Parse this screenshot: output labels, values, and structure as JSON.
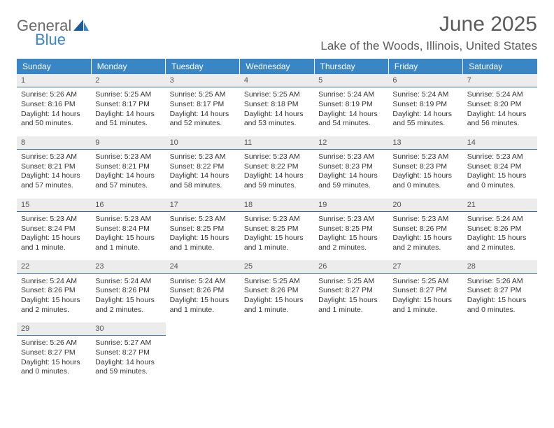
{
  "logo": {
    "text_general": "General",
    "text_blue": "Blue",
    "sail_color": "#1b5a94"
  },
  "header": {
    "title": "June 2025",
    "location": "Lake of the Woods, Illinois, United States",
    "title_color": "#5a5a5a",
    "title_fontsize": 30,
    "location_fontsize": 17
  },
  "calendar": {
    "header_bg": "#3a85c4",
    "header_text_color": "#ffffff",
    "daynum_bg": "#ececec",
    "daynum_border": "#3a6fa0",
    "body_bg": "#ffffff",
    "cell_font_size": 10.5,
    "columns": [
      "Sunday",
      "Monday",
      "Tuesday",
      "Wednesday",
      "Thursday",
      "Friday",
      "Saturday"
    ],
    "weeks": [
      [
        {
          "n": "1",
          "sr": "Sunrise: 5:26 AM",
          "ss": "Sunset: 8:16 PM",
          "dl": "Daylight: 14 hours and 50 minutes."
        },
        {
          "n": "2",
          "sr": "Sunrise: 5:25 AM",
          "ss": "Sunset: 8:17 PM",
          "dl": "Daylight: 14 hours and 51 minutes."
        },
        {
          "n": "3",
          "sr": "Sunrise: 5:25 AM",
          "ss": "Sunset: 8:17 PM",
          "dl": "Daylight: 14 hours and 52 minutes."
        },
        {
          "n": "4",
          "sr": "Sunrise: 5:25 AM",
          "ss": "Sunset: 8:18 PM",
          "dl": "Daylight: 14 hours and 53 minutes."
        },
        {
          "n": "5",
          "sr": "Sunrise: 5:24 AM",
          "ss": "Sunset: 8:19 PM",
          "dl": "Daylight: 14 hours and 54 minutes."
        },
        {
          "n": "6",
          "sr": "Sunrise: 5:24 AM",
          "ss": "Sunset: 8:19 PM",
          "dl": "Daylight: 14 hours and 55 minutes."
        },
        {
          "n": "7",
          "sr": "Sunrise: 5:24 AM",
          "ss": "Sunset: 8:20 PM",
          "dl": "Daylight: 14 hours and 56 minutes."
        }
      ],
      [
        {
          "n": "8",
          "sr": "Sunrise: 5:23 AM",
          "ss": "Sunset: 8:21 PM",
          "dl": "Daylight: 14 hours and 57 minutes."
        },
        {
          "n": "9",
          "sr": "Sunrise: 5:23 AM",
          "ss": "Sunset: 8:21 PM",
          "dl": "Daylight: 14 hours and 57 minutes."
        },
        {
          "n": "10",
          "sr": "Sunrise: 5:23 AM",
          "ss": "Sunset: 8:22 PM",
          "dl": "Daylight: 14 hours and 58 minutes."
        },
        {
          "n": "11",
          "sr": "Sunrise: 5:23 AM",
          "ss": "Sunset: 8:22 PM",
          "dl": "Daylight: 14 hours and 59 minutes."
        },
        {
          "n": "12",
          "sr": "Sunrise: 5:23 AM",
          "ss": "Sunset: 8:23 PM",
          "dl": "Daylight: 14 hours and 59 minutes."
        },
        {
          "n": "13",
          "sr": "Sunrise: 5:23 AM",
          "ss": "Sunset: 8:23 PM",
          "dl": "Daylight: 15 hours and 0 minutes."
        },
        {
          "n": "14",
          "sr": "Sunrise: 5:23 AM",
          "ss": "Sunset: 8:24 PM",
          "dl": "Daylight: 15 hours and 0 minutes."
        }
      ],
      [
        {
          "n": "15",
          "sr": "Sunrise: 5:23 AM",
          "ss": "Sunset: 8:24 PM",
          "dl": "Daylight: 15 hours and 1 minute."
        },
        {
          "n": "16",
          "sr": "Sunrise: 5:23 AM",
          "ss": "Sunset: 8:24 PM",
          "dl": "Daylight: 15 hours and 1 minute."
        },
        {
          "n": "17",
          "sr": "Sunrise: 5:23 AM",
          "ss": "Sunset: 8:25 PM",
          "dl": "Daylight: 15 hours and 1 minute."
        },
        {
          "n": "18",
          "sr": "Sunrise: 5:23 AM",
          "ss": "Sunset: 8:25 PM",
          "dl": "Daylight: 15 hours and 1 minute."
        },
        {
          "n": "19",
          "sr": "Sunrise: 5:23 AM",
          "ss": "Sunset: 8:25 PM",
          "dl": "Daylight: 15 hours and 2 minutes."
        },
        {
          "n": "20",
          "sr": "Sunrise: 5:23 AM",
          "ss": "Sunset: 8:26 PM",
          "dl": "Daylight: 15 hours and 2 minutes."
        },
        {
          "n": "21",
          "sr": "Sunrise: 5:24 AM",
          "ss": "Sunset: 8:26 PM",
          "dl": "Daylight: 15 hours and 2 minutes."
        }
      ],
      [
        {
          "n": "22",
          "sr": "Sunrise: 5:24 AM",
          "ss": "Sunset: 8:26 PM",
          "dl": "Daylight: 15 hours and 2 minutes."
        },
        {
          "n": "23",
          "sr": "Sunrise: 5:24 AM",
          "ss": "Sunset: 8:26 PM",
          "dl": "Daylight: 15 hours and 2 minutes."
        },
        {
          "n": "24",
          "sr": "Sunrise: 5:24 AM",
          "ss": "Sunset: 8:26 PM",
          "dl": "Daylight: 15 hours and 1 minute."
        },
        {
          "n": "25",
          "sr": "Sunrise: 5:25 AM",
          "ss": "Sunset: 8:26 PM",
          "dl": "Daylight: 15 hours and 1 minute."
        },
        {
          "n": "26",
          "sr": "Sunrise: 5:25 AM",
          "ss": "Sunset: 8:27 PM",
          "dl": "Daylight: 15 hours and 1 minute."
        },
        {
          "n": "27",
          "sr": "Sunrise: 5:25 AM",
          "ss": "Sunset: 8:27 PM",
          "dl": "Daylight: 15 hours and 1 minute."
        },
        {
          "n": "28",
          "sr": "Sunrise: 5:26 AM",
          "ss": "Sunset: 8:27 PM",
          "dl": "Daylight: 15 hours and 0 minutes."
        }
      ],
      [
        {
          "n": "29",
          "sr": "Sunrise: 5:26 AM",
          "ss": "Sunset: 8:27 PM",
          "dl": "Daylight: 15 hours and 0 minutes."
        },
        {
          "n": "30",
          "sr": "Sunrise: 5:27 AM",
          "ss": "Sunset: 8:27 PM",
          "dl": "Daylight: 14 hours and 59 minutes."
        },
        null,
        null,
        null,
        null,
        null
      ]
    ]
  }
}
